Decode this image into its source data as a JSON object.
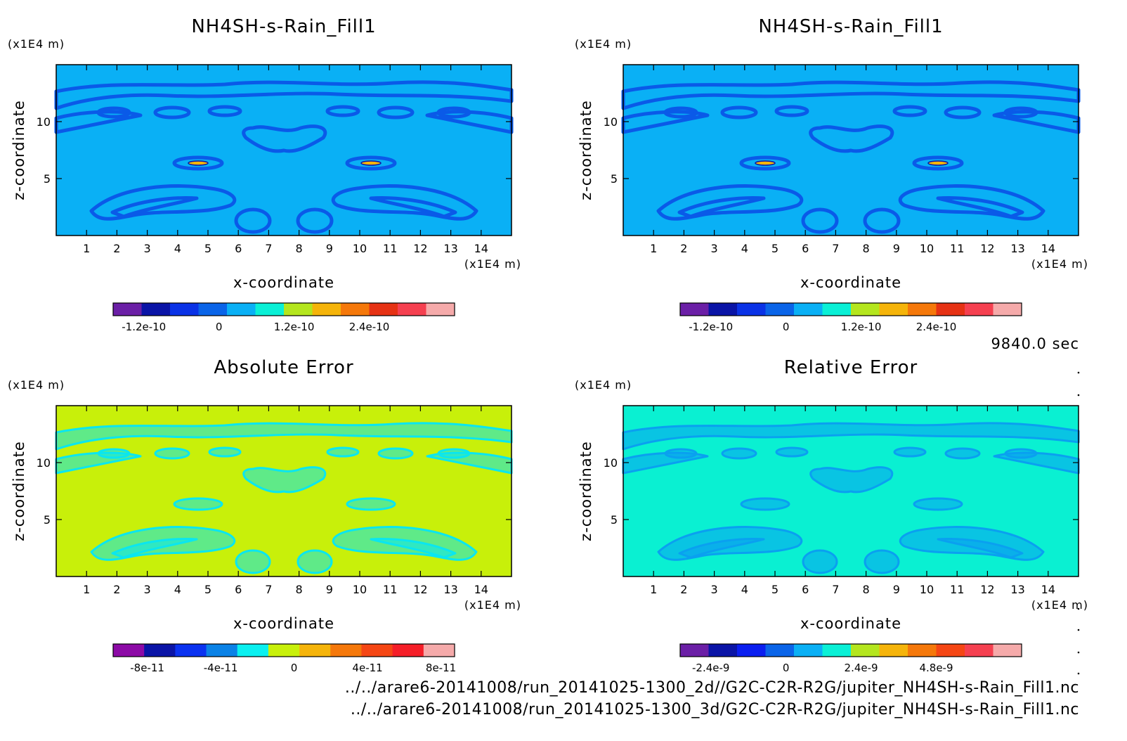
{
  "figure": {
    "time_label": "9840.0 sec",
    "paths": [
      "../../arare6-20141008/run_20141025-1300_2d//G2C-C2R-R2G/jupiter_NH4SH-s-Rain_Fill1.nc",
      "../../arare6-20141008/run_20141025-1300_3d/G2C-C2R-R2G/jupiter_NH4SH-s-Rain_Fill1.nc"
    ]
  },
  "chart_data": [
    {
      "type": "heatmap",
      "title": "NH4SH-s-Rain_Fill1",
      "xlabel": "x-coordinate",
      "ylabel": "z-coordinate",
      "xunit": "(x1E4 m)",
      "yunit": "(x1E4 m)",
      "xlim": [
        0,
        15
      ],
      "ylim": [
        0,
        15
      ],
      "xticks": [
        1,
        2,
        3,
        4,
        5,
        6,
        7,
        8,
        9,
        10,
        11,
        12,
        13,
        14
      ],
      "yticks": [
        5,
        10
      ],
      "background": "#0ab0f5",
      "contour_color": "#0a5ae8",
      "colorbar": {
        "colors": [
          "#6b1fa6",
          "#0a14a6",
          "#0a32e6",
          "#0a64e8",
          "#0ab0f5",
          "#0af0d6",
          "#b4e61e",
          "#f5b40a",
          "#f5780a",
          "#e63214",
          "#f54050",
          "#f5aaaa"
        ],
        "ticks": [
          "-1.2e-10",
          "0",
          "1.2e-10",
          "2.4e-10"
        ]
      }
    },
    {
      "type": "heatmap",
      "title": "NH4SH-s-Rain_Fill1",
      "xlabel": "x-coordinate",
      "ylabel": "z-coordinate",
      "xunit": "(x1E4 m)",
      "yunit": "(x1E4 m)",
      "xlim": [
        0,
        15
      ],
      "ylim": [
        0,
        15
      ],
      "xticks": [
        1,
        2,
        3,
        4,
        5,
        6,
        7,
        8,
        9,
        10,
        11,
        12,
        13,
        14
      ],
      "yticks": [
        5,
        10
      ],
      "background": "#0ab0f5",
      "contour_color": "#0a5ae8",
      "colorbar": {
        "colors": [
          "#6b1fa6",
          "#0a14a6",
          "#0a32e6",
          "#0a64e8",
          "#0ab0f5",
          "#0af0d6",
          "#b4e61e",
          "#f5b40a",
          "#f5780a",
          "#e63214",
          "#f54050",
          "#f5aaaa"
        ],
        "ticks": [
          "-1.2e-10",
          "0",
          "1.2e-10",
          "2.4e-10"
        ]
      }
    },
    {
      "type": "heatmap",
      "title": "Absolute Error",
      "xlabel": "x-coordinate",
      "ylabel": "z-coordinate",
      "xunit": "(x1E4 m)",
      "yunit": "(x1E4 m)",
      "xlim": [
        0,
        15
      ],
      "ylim": [
        0,
        15
      ],
      "xticks": [
        1,
        2,
        3,
        4,
        5,
        6,
        7,
        8,
        9,
        10,
        11,
        12,
        13,
        14
      ],
      "yticks": [
        5,
        10
      ],
      "background": "#c8f00a",
      "contour_color": "#0ae6f0",
      "colorbar": {
        "colors": [
          "#8c0aa6",
          "#0a14a6",
          "#0a32f0",
          "#0a82e6",
          "#0af0f0",
          "#c8f00a",
          "#f5b40a",
          "#f5780a",
          "#f54614",
          "#f51e28",
          "#f5aaaa"
        ],
        "ticks": [
          "-8e-11",
          "-4e-11",
          "0",
          "4e-11",
          "8e-11"
        ]
      }
    },
    {
      "type": "heatmap",
      "title": "Relative Error",
      "xlabel": "x-coordinate",
      "ylabel": "z-coordinate",
      "xunit": "(x1E4 m)",
      "yunit": "(x1E4 m)",
      "xlim": [
        0,
        15
      ],
      "ylim": [
        0,
        15
      ],
      "xticks": [
        1,
        2,
        3,
        4,
        5,
        6,
        7,
        8,
        9,
        10,
        11,
        12,
        13,
        14
      ],
      "yticks": [
        5,
        10
      ],
      "background": "#0af0d2",
      "contour_color": "#0aa0f0",
      "colorbar": {
        "colors": [
          "#6b1fa6",
          "#0a14a6",
          "#0a1ef0",
          "#0a64e8",
          "#0ab0f5",
          "#0af0d6",
          "#b4e61e",
          "#f5b40a",
          "#f5780a",
          "#f54614",
          "#f54050",
          "#f5aaaa"
        ],
        "ticks": [
          "-2.4e-9",
          "0",
          "2.4e-9",
          "4.8e-9"
        ]
      }
    }
  ]
}
